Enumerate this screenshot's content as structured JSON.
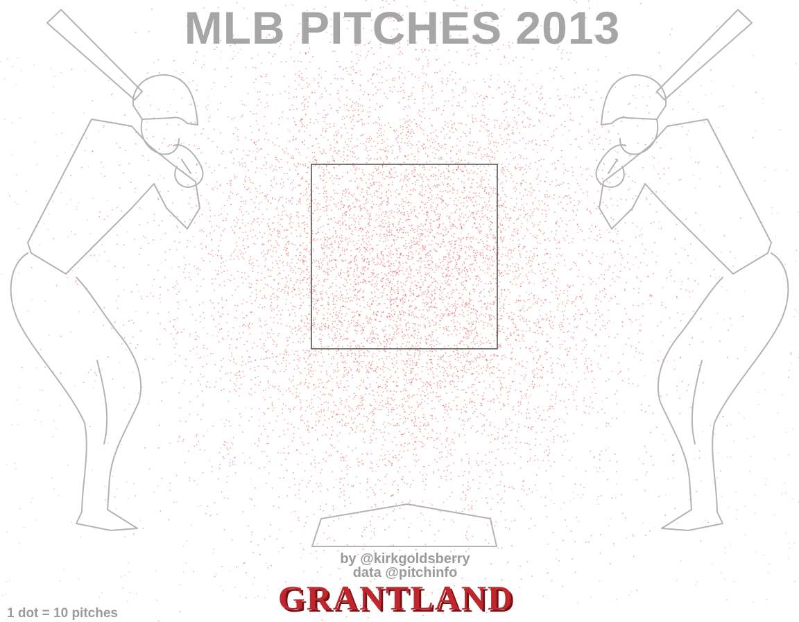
{
  "title": "MLB PITCHES 2013",
  "credits": {
    "byline": "by @kirkgoldsberry",
    "data_source": "data @pitchinfo"
  },
  "brand": "GRANTLAND",
  "legend": "1 dot = 10 pitches",
  "colors": {
    "title": "#a6a6a6",
    "dot": "#e0302f",
    "outline": "#b3b3b3",
    "strike_zone": "#555555",
    "credit": "#9a9a9a",
    "brand": "#c0272d",
    "brand_shadow": "#7a1015"
  },
  "chart_data": {
    "type": "scatter",
    "title": "MLB PITCHES 2013",
    "xlabel": "",
    "ylabel": "",
    "grid": false,
    "legend": "1 dot = 10 pitches",
    "annotations": [
      "strike zone",
      "home plate",
      "right-handed batter",
      "left-handed batter"
    ]
  }
}
